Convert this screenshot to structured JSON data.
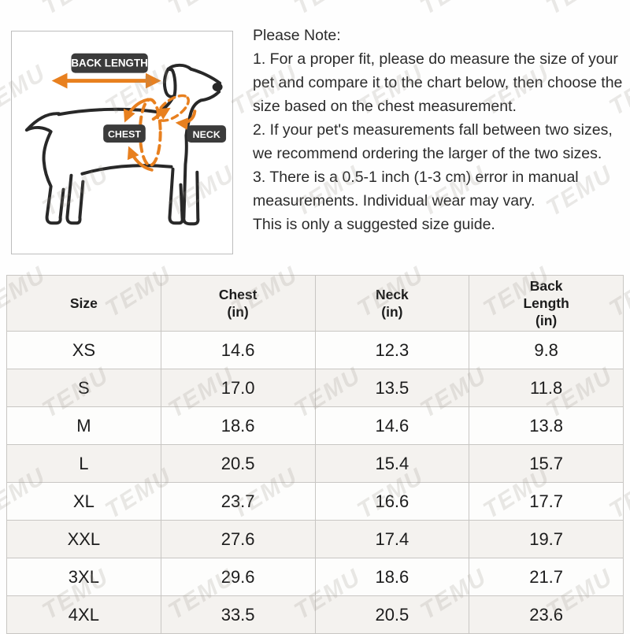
{
  "colors": {
    "accent_orange": "#e8801f",
    "label_dark": "#3b3b3b",
    "table_border": "#c8c6c3",
    "row_alt_bg": "#f4f2ef",
    "row_bg": "#fdfdfc",
    "text_dark": "#1c1c1c"
  },
  "watermark": {
    "text": "TEMU"
  },
  "diagram": {
    "back_length_label": "BACK LENGTH",
    "chest_label": "CHEST",
    "neck_label": "NECK"
  },
  "note": {
    "title": "Please Note:",
    "lines": [
      "1. For a proper fit, please do measure the size of your pet and compare it to the chart below, then choose the size based on the chest measurement.",
      "2. If your pet's measurements fall between two sizes, we recommend ordering the larger of the two sizes.",
      "3. There is a 0.5-1 inch (1-3 cm) error in manual measurements. Individual wear may vary.",
      "This is only a suggested size guide."
    ]
  },
  "table": {
    "columns": [
      {
        "lines": [
          "Size"
        ]
      },
      {
        "lines": [
          "Chest",
          "(in)"
        ]
      },
      {
        "lines": [
          "Neck",
          "(in)"
        ]
      },
      {
        "lines": [
          "Back",
          "Length",
          "(in)"
        ]
      }
    ],
    "rows": [
      {
        "size": "XS",
        "chest": "14.6",
        "neck": "12.3",
        "back_length": "9.8"
      },
      {
        "size": "S",
        "chest": "17.0",
        "neck": "13.5",
        "back_length": "11.8"
      },
      {
        "size": "M",
        "chest": "18.6",
        "neck": "14.6",
        "back_length": "13.8"
      },
      {
        "size": "L",
        "chest": "20.5",
        "neck": "15.4",
        "back_length": "15.7"
      },
      {
        "size": "XL",
        "chest": "23.7",
        "neck": "16.6",
        "back_length": "17.7"
      },
      {
        "size": "XXL",
        "chest": "27.6",
        "neck": "17.4",
        "back_length": "19.7"
      },
      {
        "size": "3XL",
        "chest": "29.6",
        "neck": "18.6",
        "back_length": "21.7"
      },
      {
        "size": "4XL",
        "chest": "33.5",
        "neck": "20.5",
        "back_length": "23.6"
      }
    ]
  }
}
